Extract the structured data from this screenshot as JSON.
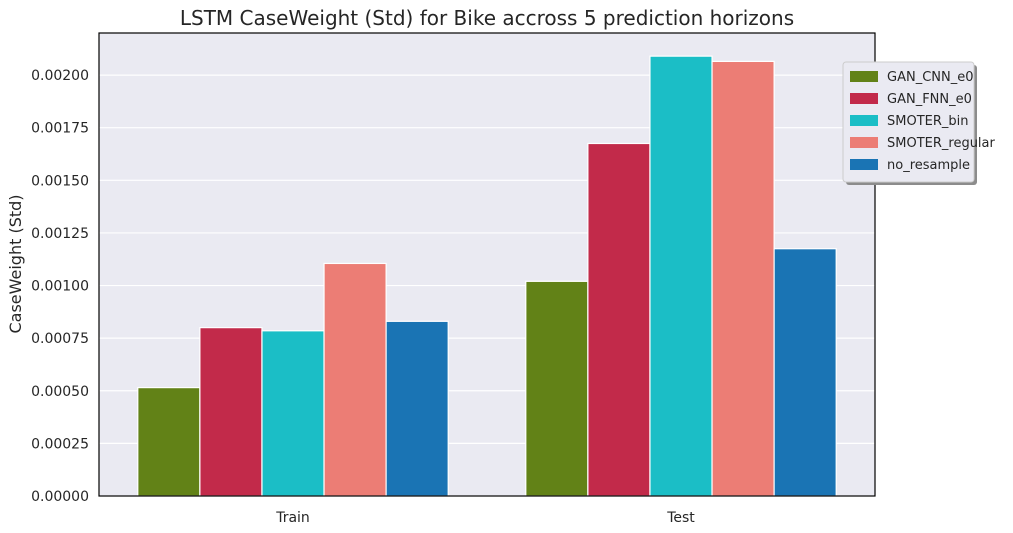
{
  "chart_data": {
    "type": "bar",
    "title": "LSTM CaseWeight (Std) for Bike accross 5 prediction horizons",
    "xlabel": "",
    "ylabel": "CaseWeight (Std)",
    "categories": [
      "Train",
      "Test"
    ],
    "series": [
      {
        "name": "GAN_CNN_e0",
        "color": "#628217",
        "values": [
          0.000515,
          0.00102
        ]
      },
      {
        "name": "GAN_FNN_e0",
        "color": "#c22a4a",
        "values": [
          0.0008,
          0.001675
        ]
      },
      {
        "name": "SMOTER_bin",
        "color": "#1bbec6",
        "values": [
          0.000785,
          0.00209
        ]
      },
      {
        "name": "SMOTER_regular",
        "color": "#ec7d75",
        "values": [
          0.001105,
          0.002065
        ]
      },
      {
        "name": "no_resample",
        "color": "#1a74b4",
        "values": [
          0.00083,
          0.001175
        ]
      }
    ],
    "ylim": [
      0,
      0.0022
    ],
    "yticks": [
      0,
      0.00025,
      0.0005,
      0.00075,
      0.001,
      0.00125,
      0.0015,
      0.00175,
      0.002
    ],
    "ytick_labels": [
      "0.00000",
      "0.00025",
      "0.00050",
      "0.00075",
      "0.00100",
      "0.00125",
      "0.00150",
      "0.00175",
      "0.00200"
    ],
    "grid": true,
    "legend_position": "top-right (outside)"
  }
}
